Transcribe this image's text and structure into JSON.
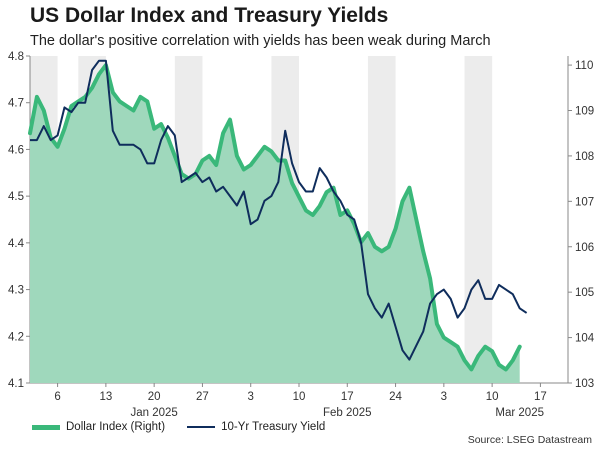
{
  "title": "US Dollar Index and Treasury Yields",
  "subtitle": "The dollar's positive correlation with yields has been weak during March",
  "source": "Source: LSEG Datastream",
  "colors": {
    "dollar_line": "#3ab87a",
    "dollar_fill": "#9fd8bc",
    "yield_line": "#0f2d5c",
    "band": "#ececec",
    "axis": "#888888"
  },
  "chart_data": {
    "type": "line",
    "x_ticks": [
      "6",
      "13",
      "20",
      "27",
      "3",
      "10",
      "17",
      "24",
      "3",
      "10",
      "17"
    ],
    "x_tick_days": [
      6,
      13,
      20,
      27,
      34,
      41,
      48,
      55,
      62,
      69,
      76
    ],
    "months": [
      {
        "label": "Jan 2025",
        "day": 20
      },
      {
        "label": "Feb 2025",
        "day": 48
      },
      {
        "label": "Mar 2025",
        "day": 73
      }
    ],
    "x_range": [
      2,
      80
    ],
    "shaded_weeks": [
      [
        2,
        6
      ],
      [
        9,
        13
      ],
      [
        23,
        27
      ],
      [
        37,
        41
      ],
      [
        51,
        55
      ],
      [
        65,
        69
      ]
    ],
    "y_left": {
      "label": "",
      "min": 4.1,
      "max": 4.8,
      "ticks": [
        4.1,
        4.2,
        4.3,
        4.4,
        4.5,
        4.6,
        4.7,
        4.8
      ]
    },
    "y_right": {
      "label": "",
      "min": 103,
      "max": 110.2,
      "ticks": [
        103,
        104,
        105,
        106,
        107,
        108,
        109,
        110
      ]
    },
    "legend": [
      "Dollar Index (Right)",
      "10-Yr Treasury Yield"
    ],
    "series": [
      {
        "name": "Dollar Index (Right)",
        "axis": "right",
        "style": "area",
        "points": [
          [
            2,
            108.5
          ],
          [
            3,
            109.3
          ],
          [
            4,
            109.0
          ],
          [
            5,
            108.4
          ],
          [
            6,
            108.2
          ],
          [
            7,
            108.6
          ],
          [
            8,
            109.1
          ],
          [
            9,
            109.2
          ],
          [
            10,
            109.3
          ],
          [
            11,
            109.5
          ],
          [
            12,
            109.8
          ],
          [
            13,
            110.0
          ],
          [
            14,
            109.4
          ],
          [
            15,
            109.2
          ],
          [
            16,
            109.1
          ],
          [
            17,
            109.0
          ],
          [
            18,
            109.3
          ],
          [
            19,
            109.2
          ],
          [
            20,
            108.6
          ],
          [
            21,
            108.7
          ],
          [
            22,
            108.4
          ],
          [
            23,
            108.0
          ],
          [
            24,
            107.6
          ],
          [
            25,
            107.5
          ],
          [
            26,
            107.6
          ],
          [
            27,
            107.9
          ],
          [
            28,
            108.0
          ],
          [
            29,
            107.8
          ],
          [
            30,
            108.5
          ],
          [
            31,
            108.8
          ],
          [
            32,
            108.0
          ],
          [
            33,
            107.7
          ],
          [
            34,
            107.8
          ],
          [
            35,
            108.0
          ],
          [
            36,
            108.2
          ],
          [
            37,
            108.1
          ],
          [
            38,
            107.9
          ],
          [
            39,
            107.9
          ],
          [
            40,
            107.4
          ],
          [
            41,
            107.1
          ],
          [
            42,
            106.8
          ],
          [
            43,
            106.7
          ],
          [
            44,
            106.9
          ],
          [
            45,
            107.2
          ],
          [
            46,
            107.3
          ],
          [
            47,
            106.7
          ],
          [
            48,
            106.8
          ],
          [
            49,
            106.5
          ],
          [
            50,
            106.1
          ],
          [
            51,
            106.3
          ],
          [
            52,
            106.0
          ],
          [
            53,
            105.9
          ],
          [
            54,
            106.0
          ],
          [
            55,
            106.4
          ],
          [
            56,
            107.0
          ],
          [
            57,
            107.3
          ],
          [
            58,
            106.6
          ],
          [
            59,
            105.9
          ],
          [
            60,
            105.3
          ],
          [
            61,
            104.3
          ],
          [
            62,
            104.0
          ],
          [
            63,
            103.9
          ],
          [
            64,
            103.8
          ],
          [
            65,
            103.5
          ],
          [
            66,
            103.3
          ],
          [
            67,
            103.6
          ],
          [
            68,
            103.8
          ],
          [
            69,
            103.7
          ],
          [
            70,
            103.4
          ],
          [
            71,
            103.3
          ],
          [
            72,
            103.5
          ],
          [
            73,
            103.8
          ]
        ]
      },
      {
        "name": "10-Yr Treasury Yield",
        "axis": "left",
        "style": "line",
        "points": [
          [
            2,
            4.62
          ],
          [
            3,
            4.62
          ],
          [
            4,
            4.65
          ],
          [
            5,
            4.62
          ],
          [
            6,
            4.63
          ],
          [
            7,
            4.69
          ],
          [
            8,
            4.68
          ],
          [
            9,
            4.7
          ],
          [
            10,
            4.7
          ],
          [
            11,
            4.77
          ],
          [
            12,
            4.79
          ],
          [
            13,
            4.79
          ],
          [
            14,
            4.64
          ],
          [
            15,
            4.61
          ],
          [
            16,
            4.61
          ],
          [
            17,
            4.61
          ],
          [
            18,
            4.6
          ],
          [
            19,
            4.57
          ],
          [
            20,
            4.57
          ],
          [
            21,
            4.62
          ],
          [
            22,
            4.65
          ],
          [
            23,
            4.63
          ],
          [
            24,
            4.53
          ],
          [
            25,
            4.54
          ],
          [
            26,
            4.55
          ],
          [
            27,
            4.53
          ],
          [
            28,
            4.54
          ],
          [
            29,
            4.51
          ],
          [
            30,
            4.52
          ],
          [
            31,
            4.5
          ],
          [
            32,
            4.48
          ],
          [
            33,
            4.51
          ],
          [
            34,
            4.44
          ],
          [
            35,
            4.45
          ],
          [
            36,
            4.49
          ],
          [
            37,
            4.5
          ],
          [
            38,
            4.53
          ],
          [
            39,
            4.64
          ],
          [
            40,
            4.57
          ],
          [
            41,
            4.53
          ],
          [
            42,
            4.51
          ],
          [
            43,
            4.51
          ],
          [
            44,
            4.56
          ],
          [
            45,
            4.54
          ],
          [
            46,
            4.51
          ],
          [
            47,
            4.49
          ],
          [
            48,
            4.46
          ],
          [
            49,
            4.45
          ],
          [
            50,
            4.4
          ],
          [
            51,
            4.29
          ],
          [
            52,
            4.26
          ],
          [
            53,
            4.24
          ],
          [
            54,
            4.27
          ],
          [
            55,
            4.22
          ],
          [
            56,
            4.17
          ],
          [
            57,
            4.15
          ],
          [
            58,
            4.18
          ],
          [
            59,
            4.21
          ],
          [
            60,
            4.27
          ],
          [
            61,
            4.29
          ],
          [
            62,
            4.3
          ],
          [
            63,
            4.28
          ],
          [
            64,
            4.24
          ],
          [
            65,
            4.26
          ],
          [
            66,
            4.3
          ],
          [
            67,
            4.32
          ],
          [
            68,
            4.28
          ],
          [
            69,
            4.28
          ],
          [
            70,
            4.31
          ],
          [
            71,
            4.3
          ],
          [
            72,
            4.29
          ],
          [
            73,
            4.26
          ],
          [
            74,
            4.25
          ]
        ]
      }
    ]
  }
}
